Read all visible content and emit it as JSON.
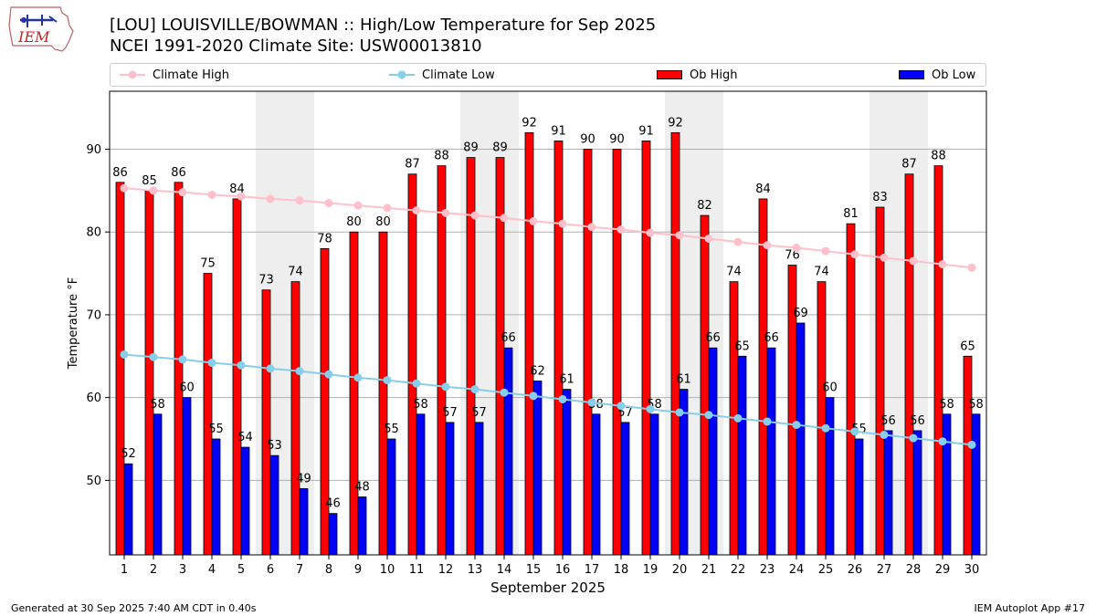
{
  "header": {
    "logo_text": "IEM",
    "title": "[LOU] LOUISVILLE/BOWMAN :: High/Low Temperature for Sep 2025",
    "subtitle": "NCEI 1991-2020 Climate Site: USW00013810"
  },
  "legend": {
    "climate_high": "Climate High",
    "climate_low": "Climate Low",
    "ob_high": "Ob High",
    "ob_low": "Ob Low"
  },
  "colors": {
    "ob_high": "#ff0000",
    "ob_low": "#0000ff",
    "climate_high": "#ffc0cb",
    "climate_low": "#87ceeb",
    "shade": "#eeeeee",
    "grid": "#b0b0b0"
  },
  "chart_data": {
    "type": "bar",
    "xlabel": "September 2025",
    "ylabel": "Temperature °F",
    "ylim": [
      41,
      97
    ],
    "yticks": [
      50,
      60,
      70,
      80,
      90
    ],
    "grid": "horizontal",
    "legend_position": "top",
    "categories": [
      1,
      2,
      3,
      4,
      5,
      6,
      7,
      8,
      9,
      10,
      11,
      12,
      13,
      14,
      15,
      16,
      17,
      18,
      19,
      20,
      21,
      22,
      23,
      24,
      25,
      26,
      27,
      28,
      29,
      30
    ],
    "weekend_days": [
      6,
      7,
      13,
      14,
      20,
      21,
      27,
      28
    ],
    "series": [
      {
        "name": "Ob High",
        "kind": "bar",
        "values": [
          86,
          85,
          86,
          75,
          84,
          73,
          74,
          78,
          80,
          80,
          87,
          88,
          89,
          89,
          92,
          91,
          90,
          90,
          91,
          92,
          82,
          74,
          84,
          76,
          74,
          81,
          83,
          87,
          88,
          65
        ]
      },
      {
        "name": "Ob Low",
        "kind": "bar",
        "values": [
          52,
          58,
          60,
          55,
          54,
          53,
          49,
          46,
          48,
          55,
          58,
          57,
          57,
          66,
          62,
          61,
          58,
          57,
          58,
          61,
          66,
          65,
          66,
          69,
          60,
          55,
          56,
          56,
          58,
          58
        ]
      },
      {
        "name": "Climate High",
        "kind": "line",
        "values": [
          85.3,
          85.0,
          84.8,
          84.5,
          84.3,
          84.0,
          83.8,
          83.5,
          83.2,
          82.9,
          82.6,
          82.3,
          82.0,
          81.7,
          81.3,
          81.0,
          80.6,
          80.3,
          79.9,
          79.6,
          79.2,
          78.8,
          78.4,
          78.1,
          77.7,
          77.3,
          76.9,
          76.5,
          76.1,
          75.7
        ]
      },
      {
        "name": "Climate Low",
        "kind": "line",
        "values": [
          65.2,
          64.9,
          64.6,
          64.2,
          63.9,
          63.5,
          63.2,
          62.8,
          62.4,
          62.1,
          61.7,
          61.3,
          61.0,
          60.6,
          60.2,
          59.8,
          59.4,
          59.0,
          58.6,
          58.2,
          57.9,
          57.5,
          57.1,
          56.7,
          56.3,
          55.9,
          55.5,
          55.1,
          54.7,
          54.3
        ]
      }
    ]
  },
  "footer": {
    "generated": "Generated at 30 Sep 2025 7:40 AM CDT in 0.40s",
    "app": "IEM Autoplot App #17"
  }
}
